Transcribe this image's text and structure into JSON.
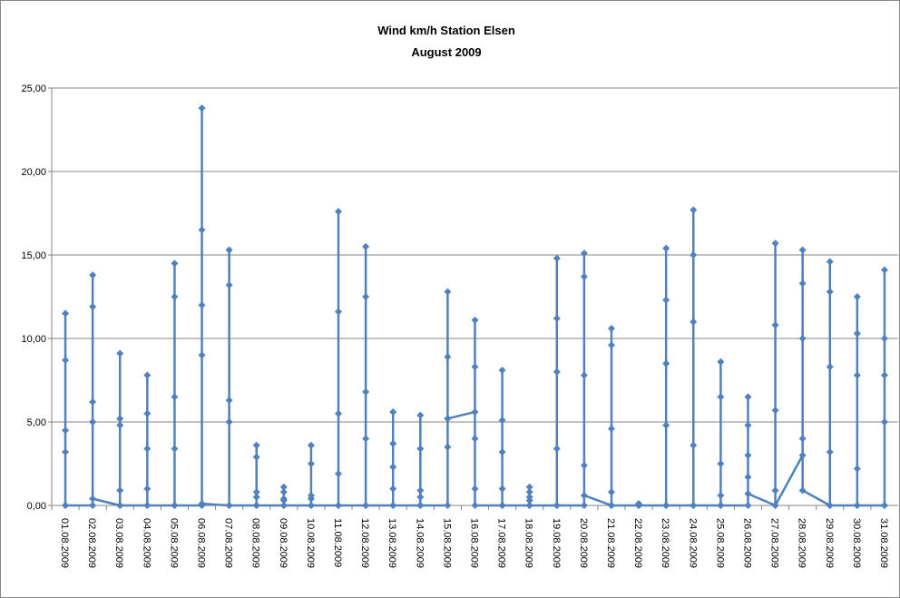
{
  "chart_data": {
    "type": "line",
    "title": "Wind km/h  Station Elsen",
    "subtitle": "August 2009",
    "categories": [
      "01.08.2009",
      "02.08.2009",
      "03.08.2009",
      "04.08.2009",
      "05.08.2009",
      "06.08.2009",
      "07.08.2009",
      "08.08.2009",
      "09.08.2009",
      "10.08.2009",
      "11.08.2009",
      "12.08.2009",
      "13.08.2009",
      "14.08.2009",
      "15.08.2009",
      "16.08.2009",
      "17.08.2009",
      "18.08.2009",
      "19.08.2009",
      "20.08.2009",
      "21.08.2009",
      "22.08.2009",
      "23.08.2009",
      "24.08.2009",
      "25.08.2009",
      "26.08.2009",
      "27.08.2009",
      "28.08.2009",
      "29.08.2009",
      "30.08.2009",
      "31.08.2009"
    ],
    "values": [
      [
        0,
        4.5,
        11.5,
        8.7,
        3.2,
        0
      ],
      [
        0,
        6.2,
        13.8,
        11.9,
        5.0,
        0.4
      ],
      [
        0,
        4.8,
        9.1,
        5.2,
        0.9,
        0
      ],
      [
        0,
        3.4,
        7.8,
        5.5,
        1.0,
        0
      ],
      [
        0,
        6.5,
        14.5,
        12.5,
        3.4,
        0
      ],
      [
        0,
        9.0,
        23.8,
        16.5,
        12.0,
        0.1
      ],
      [
        0,
        6.3,
        15.3,
        13.2,
        5.0,
        0
      ],
      [
        0,
        0.8,
        3.6,
        2.9,
        0.5,
        0
      ],
      [
        0,
        0.4,
        1.1,
        0.8,
        0.3,
        0
      ],
      [
        0,
        0.6,
        3.6,
        2.5,
        0.4,
        0
      ],
      [
        0,
        5.5,
        17.6,
        11.6,
        1.9,
        0
      ],
      [
        0,
        6.8,
        15.5,
        12.5,
        4.0,
        0
      ],
      [
        0,
        2.3,
        5.6,
        3.7,
        1.0,
        0
      ],
      [
        0,
        0.9,
        5.4,
        3.4,
        0.5,
        0
      ],
      [
        0,
        3.5,
        12.8,
        8.9,
        5.2,
        5.2
      ],
      [
        5.6,
        8.3,
        11.1,
        4.0,
        1.0,
        0
      ],
      [
        0,
        3.2,
        8.1,
        5.1,
        1.0,
        0
      ],
      [
        0,
        0.5,
        1.1,
        0.8,
        0.3,
        0
      ],
      [
        0,
        8.0,
        14.8,
        11.2,
        3.4,
        0
      ],
      [
        0,
        7.8,
        15.1,
        13.7,
        2.4,
        0.6
      ],
      [
        0,
        4.6,
        10.6,
        9.6,
        0.8,
        0
      ],
      [
        0,
        0.1,
        0.1,
        0,
        0,
        0
      ],
      [
        0,
        8.5,
        15.4,
        12.3,
        4.8,
        0
      ],
      [
        0,
        11.0,
        17.7,
        15.0,
        3.6,
        0
      ],
      [
        0,
        2.5,
        8.6,
        6.5,
        0.6,
        0
      ],
      [
        0,
        3.0,
        6.5,
        4.8,
        1.7,
        0.7
      ],
      [
        0,
        5.7,
        15.7,
        10.8,
        0.9,
        0
      ],
      [
        3.0,
        10.0,
        15.3,
        13.3,
        4.0,
        0.9
      ],
      [
        0,
        8.3,
        14.6,
        12.8,
        3.2,
        0
      ],
      [
        0,
        7.8,
        12.5,
        10.3,
        2.2,
        0
      ],
      [
        0,
        5.0,
        14.1,
        10.0,
        7.8,
        0
      ]
    ],
    "color": "#4f81bd",
    "ylim": [
      0,
      25
    ],
    "yticks": [
      {
        "value": 0,
        "label": "0,00"
      },
      {
        "value": 5,
        "label": "5,00"
      },
      {
        "value": 10,
        "label": "10,00"
      },
      {
        "value": 15,
        "label": "15,00"
      },
      {
        "value": 20,
        "label": "20,00"
      },
      {
        "value": 25,
        "label": "25,00"
      }
    ],
    "grid": true
  }
}
